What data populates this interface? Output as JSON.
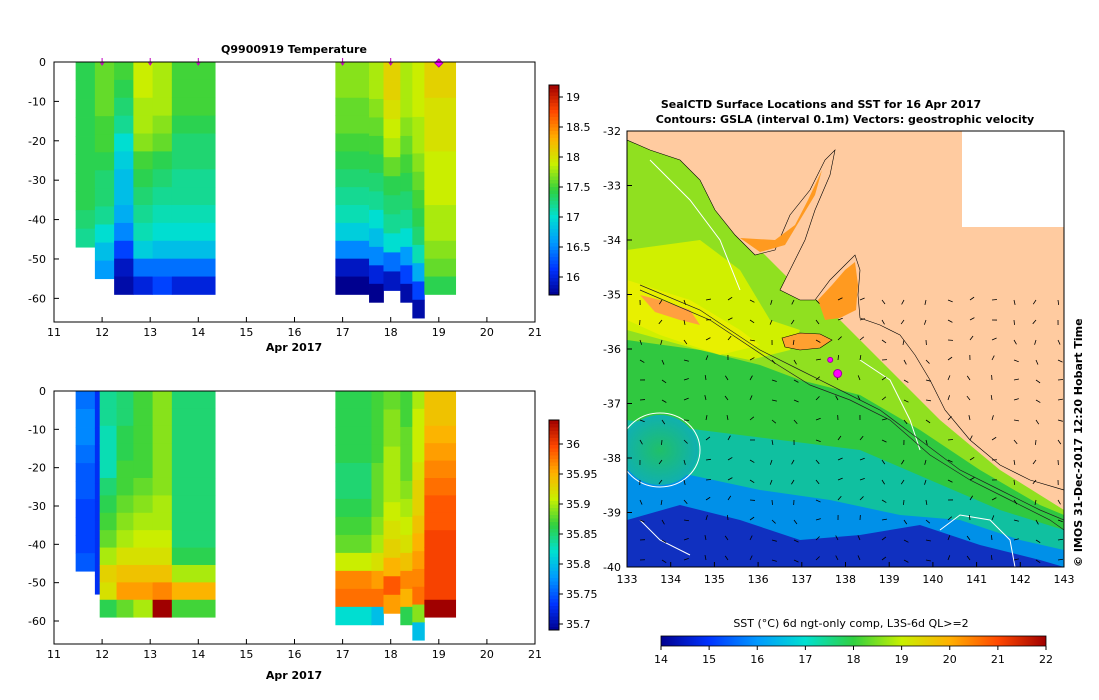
{
  "chart_data": [
    {
      "type": "heatmap",
      "title": "Q9900919  Temperature",
      "xlabel": "Apr 2017",
      "ylabel": "",
      "xlim": [
        11,
        21
      ],
      "ylim": [
        -66,
        0
      ],
      "x_ticks": [
        "11",
        "12",
        "13",
        "14",
        "15",
        "16",
        "17",
        "18",
        "19",
        "20",
        "21"
      ],
      "y_ticks": [
        "0",
        "-10",
        "-20",
        "-30",
        "-40",
        "-50",
        "-60"
      ],
      "colorbar": {
        "min": 15.7,
        "max": 19.2,
        "ticks": [
          "16",
          "16.5",
          "17",
          "17.5",
          "18",
          "18.5",
          "19"
        ]
      },
      "profile_markers_day": [
        12,
        13,
        14,
        17,
        18,
        19
      ],
      "highlight_marker_day": 19,
      "profiles": [
        {
          "x0": 11.45,
          "x1": 11.85,
          "bottom": -47,
          "values": [
            17.4,
            17.4,
            17.4,
            17.4,
            17.4,
            17.4,
            17.4,
            17.4,
            17.3,
            17.2
          ]
        },
        {
          "x0": 11.85,
          "x1": 12.25,
          "bottom": -55,
          "values": [
            17.6,
            17.6,
            17.6,
            17.5,
            17.5,
            17.4,
            17.3,
            17.3,
            17.2,
            17.0,
            16.8,
            16.6
          ]
        },
        {
          "x0": 12.25,
          "x1": 12.65,
          "bottom": -59,
          "values": [
            17.5,
            17.4,
            17.3,
            17.2,
            17.0,
            16.9,
            16.8,
            16.8,
            16.7,
            16.5,
            16.2,
            15.9,
            15.8
          ]
        },
        {
          "x0": 12.65,
          "x1": 13.05,
          "bottom": -59,
          "values": [
            17.9,
            17.9,
            17.8,
            17.8,
            17.7,
            17.5,
            17.4,
            17.3,
            17.2,
            17.1,
            16.9,
            16.4,
            16.0
          ]
        },
        {
          "x0": 13.05,
          "x1": 13.45,
          "bottom": -59,
          "values": [
            17.8,
            17.8,
            17.8,
            17.7,
            17.6,
            17.4,
            17.3,
            17.2,
            17.1,
            17.0,
            16.8,
            16.4,
            16.2
          ]
        },
        {
          "x0": 13.45,
          "x1": 14.35,
          "bottom": -59,
          "values": [
            17.5,
            17.5,
            17.5,
            17.4,
            17.3,
            17.3,
            17.2,
            17.2,
            17.1,
            17.0,
            16.8,
            16.4,
            16.0
          ]
        },
        {
          "x0": 16.85,
          "x1": 17.55,
          "bottom": -59,
          "values": [
            17.7,
            17.7,
            17.6,
            17.6,
            17.5,
            17.4,
            17.3,
            17.2,
            17.1,
            16.9,
            16.5,
            15.9,
            15.7
          ]
        },
        {
          "x0": 17.55,
          "x1": 17.85,
          "bottom": -61,
          "values": [
            17.8,
            17.8,
            17.7,
            17.6,
            17.5,
            17.4,
            17.3,
            17.2,
            17.0,
            16.8,
            16.5,
            16.0,
            15.7
          ]
        },
        {
          "x0": 17.85,
          "x1": 18.2,
          "bottom": -58,
          "values": [
            18.1,
            18.1,
            18.0,
            17.9,
            17.8,
            17.6,
            17.4,
            17.3,
            17.2,
            17.0,
            16.4,
            15.9
          ]
        },
        {
          "x0": 18.2,
          "x1": 18.45,
          "bottom": -61,
          "values": [
            17.8,
            17.8,
            17.8,
            17.7,
            17.6,
            17.5,
            17.4,
            17.3,
            17.2,
            17.0,
            16.6,
            16.2,
            15.8
          ]
        },
        {
          "x0": 18.45,
          "x1": 18.7,
          "bottom": -65,
          "values": [
            17.9,
            17.9,
            17.9,
            17.8,
            17.8,
            17.7,
            17.6,
            17.5,
            17.4,
            17.3,
            17.1,
            16.7,
            16.2,
            15.8
          ]
        },
        {
          "x0": 18.7,
          "x1": 19.35,
          "bottom": -59,
          "values": [
            18.1,
            18.1,
            18.0,
            18.0,
            18.0,
            17.9,
            17.9,
            17.9,
            17.8,
            17.8,
            17.7,
            17.6,
            17.4
          ]
        }
      ]
    },
    {
      "type": "heatmap",
      "title": "",
      "xlabel": "Apr 2017",
      "ylabel": "",
      "xlim": [
        11,
        21
      ],
      "ylim": [
        -66,
        0
      ],
      "x_ticks": [
        "11",
        "12",
        "13",
        "14",
        "15",
        "16",
        "17",
        "18",
        "19",
        "20",
        "21"
      ],
      "y_ticks": [
        "0",
        "-10",
        "-20",
        "-30",
        "-40",
        "-50",
        "-60"
      ],
      "colorbar": {
        "min": 35.69,
        "max": 36.04,
        "ticks": [
          "35.7",
          "35.75",
          "35.8",
          "35.85",
          "35.9",
          "35.95",
          "36"
        ]
      },
      "profiles": [
        {
          "x0": 11.45,
          "x1": 11.85,
          "bottom": -47,
          "values": [
            35.76,
            35.77,
            35.77,
            35.76,
            35.75,
            35.75,
            35.74,
            35.74,
            35.74,
            35.75
          ]
        },
        {
          "x0": 11.85,
          "x1": 11.95,
          "bottom": -53,
          "values": [
            35.73,
            35.73,
            35.73,
            35.73,
            35.73,
            35.73,
            35.73,
            35.73,
            35.73,
            35.73,
            35.73
          ]
        },
        {
          "x0": 11.95,
          "x1": 12.3,
          "bottom": -59,
          "values": [
            35.84,
            35.84,
            35.83,
            35.83,
            35.83,
            35.85,
            35.86,
            35.87,
            35.88,
            35.9,
            35.93,
            35.92,
            35.86
          ]
        },
        {
          "x0": 12.3,
          "x1": 12.65,
          "bottom": -59,
          "values": [
            35.85,
            35.85,
            35.86,
            35.86,
            35.87,
            35.87,
            35.88,
            35.89,
            35.9,
            35.92,
            35.94,
            35.96,
            35.88
          ]
        },
        {
          "x0": 12.65,
          "x1": 13.05,
          "bottom": -59,
          "values": [
            35.87,
            35.87,
            35.87,
            35.87,
            35.87,
            35.88,
            35.89,
            35.9,
            35.91,
            35.92,
            35.94,
            35.96,
            35.9
          ]
        },
        {
          "x0": 13.05,
          "x1": 13.45,
          "bottom": -59,
          "values": [
            35.89,
            35.89,
            35.89,
            35.89,
            35.89,
            35.89,
            35.9,
            35.9,
            35.91,
            35.92,
            35.94,
            35.97,
            36.04
          ]
        },
        {
          "x0": 13.45,
          "x1": 14.35,
          "bottom": -59,
          "values": [
            35.85,
            35.85,
            35.85,
            35.85,
            35.85,
            35.85,
            35.85,
            35.85,
            35.85,
            35.86,
            35.9,
            35.95,
            35.87
          ]
        },
        {
          "x0": 16.85,
          "x1": 17.6,
          "bottom": -61,
          "values": [
            35.86,
            35.86,
            35.86,
            35.86,
            35.85,
            35.85,
            35.86,
            35.87,
            35.88,
            35.91,
            35.97,
            35.98,
            35.82
          ]
        },
        {
          "x0": 17.6,
          "x1": 17.85,
          "bottom": -61,
          "values": [
            35.87,
            35.87,
            35.87,
            35.87,
            35.88,
            35.88,
            35.88,
            35.89,
            35.9,
            35.92,
            35.96,
            35.98,
            35.8
          ]
        },
        {
          "x0": 17.85,
          "x1": 18.2,
          "bottom": -58,
          "values": [
            35.88,
            35.89,
            35.89,
            35.9,
            35.9,
            35.9,
            35.91,
            35.92,
            35.93,
            35.95,
            35.99,
            35.96
          ]
        },
        {
          "x0": 18.2,
          "x1": 18.45,
          "bottom": -61,
          "values": [
            35.87,
            35.87,
            35.88,
            35.88,
            35.88,
            35.89,
            35.9,
            35.91,
            35.92,
            35.94,
            35.97,
            35.95,
            35.86
          ]
        },
        {
          "x0": 18.45,
          "x1": 18.7,
          "bottom": -65,
          "values": [
            35.9,
            35.91,
            35.91,
            35.91,
            35.92,
            35.93,
            35.93,
            35.94,
            35.95,
            35.96,
            35.97,
            35.98,
            35.89,
            35.8
          ]
        },
        {
          "x0": 18.7,
          "x1": 19.35,
          "bottom": -59,
          "values": [
            35.94,
            35.94,
            35.95,
            35.96,
            35.97,
            35.98,
            35.99,
            35.99,
            36.0,
            36.0,
            36.0,
            36.0,
            36.04
          ]
        }
      ]
    },
    {
      "type": "map",
      "title": "SealCTD Surface Locations and SST for 16 Apr 2017",
      "subtitle": "Contours: GSLA (interval 0.1m) Vectors: geostrophic velocity",
      "xlim": [
        133,
        143
      ],
      "ylim": [
        -40,
        -32
      ],
      "x_ticks": [
        "133",
        "134",
        "135",
        "136",
        "137",
        "138",
        "139",
        "140",
        "141",
        "142",
        "143"
      ],
      "y_ticks": [
        "-32",
        "-33",
        "-34",
        "-35",
        "-36",
        "-37",
        "-38",
        "-39",
        "-40"
      ],
      "colorbar_label": "SST (°C) 6d ngt-only comp, L3S-6d QL>=2",
      "colorbar": {
        "min": 14,
        "max": 22,
        "ticks": [
          "14",
          "15",
          "16",
          "17",
          "18",
          "19",
          "20",
          "21",
          "22"
        ]
      },
      "seal_locations": [
        {
          "lon": 137.65,
          "lat": -36.2
        },
        {
          "lon": 137.82,
          "lat": -36.45
        }
      ],
      "side_label": "© IMOS 31-Dec-2017 12:20 Hobart Time"
    }
  ]
}
